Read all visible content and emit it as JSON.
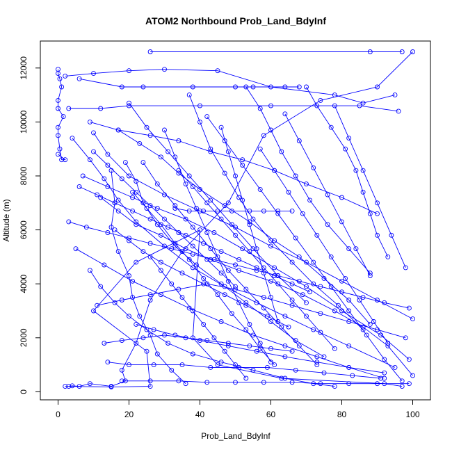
{
  "chart_data": {
    "type": "line",
    "title": "ATOM2 Northbound Prob_Land_BdyInf",
    "xlabel": "Prob_Land_BdyInf",
    "ylabel": "Altitude (m)",
    "xlim": [
      -5,
      105
    ],
    "ylim": [
      -300,
      13000
    ],
    "xticks": [
      "0",
      "20",
      "40",
      "60",
      "80",
      "100"
    ],
    "yticks": [
      "0",
      "2000",
      "4000",
      "6000",
      "8000",
      "10000",
      "12000"
    ],
    "xtick_values": [
      0,
      20,
      40,
      60,
      80,
      100
    ],
    "ytick_values": [
      0,
      2000,
      4000,
      6000,
      8000,
      10000,
      12000
    ],
    "grid": false,
    "legend": "none",
    "color": "#0000ff",
    "series": [
      {
        "x": [
          0,
          0,
          0.5,
          1,
          0,
          0,
          1.5,
          0,
          0,
          0.5,
          1,
          2,
          0
        ],
        "y": [
          11950,
          11800,
          11600,
          11300,
          10800,
          10500,
          10200,
          9800,
          9500,
          9000,
          8600,
          8600,
          8800
        ]
      },
      {
        "x": [
          2,
          15,
          26,
          25,
          10,
          22,
          40,
          38,
          45,
          63,
          92,
          97
        ],
        "y": [
          200,
          180,
          200,
          1500,
          3000,
          4800,
          6000,
          2000,
          1000,
          500,
          300,
          200
        ]
      },
      {
        "x": [
          3,
          4,
          6,
          9,
          15,
          19,
          18,
          22,
          26,
          35,
          48,
          58,
          74,
          90,
          100
        ],
        "y": [
          200,
          220,
          200,
          300,
          200,
          400,
          800,
          1800,
          3400,
          5200,
          7000,
          9500,
          10800,
          11300,
          12600
        ]
      },
      {
        "x": [
          26,
          88,
          97
        ],
        "y": [
          12600,
          12600,
          12600
        ]
      },
      {
        "x": [
          2,
          10,
          20,
          30,
          45,
          60,
          78,
          86,
          95
        ],
        "y": [
          11700,
          11800,
          11900,
          11950,
          11900,
          11300,
          11000,
          10700,
          11000
        ]
      },
      {
        "x": [
          6,
          18,
          24,
          38,
          50,
          55,
          64,
          68
        ],
        "y": [
          11600,
          11300,
          11300,
          11300,
          11300,
          11300,
          11300,
          11300
        ]
      },
      {
        "x": [
          3,
          12,
          20,
          40,
          60,
          85,
          96
        ],
        "y": [
          10500,
          10500,
          10600,
          10600,
          10600,
          10600,
          10400
        ]
      },
      {
        "x": [
          9,
          17,
          26,
          34,
          43,
          52,
          61,
          70,
          80,
          90
        ],
        "y": [
          10000,
          9700,
          9500,
          9300,
          8900,
          8600,
          8200,
          7700,
          7200,
          6600
        ]
      },
      {
        "x": [
          10,
          14,
          20,
          30,
          40,
          50,
          60,
          70,
          80,
          90,
          100
        ],
        "y": [
          9600,
          8800,
          8000,
          7300,
          6700,
          6100,
          5400,
          4800,
          4100,
          3400,
          2700
        ]
      },
      {
        "x": [
          4,
          9,
          13,
          17,
          22,
          30,
          38,
          47,
          56,
          64,
          72,
          82,
          95
        ],
        "y": [
          9400,
          8600,
          7900,
          7100,
          6300,
          5400,
          4600,
          3900,
          3300,
          2800,
          2300,
          1700,
          900
        ]
      },
      {
        "x": [
          15,
          16,
          15,
          17,
          20,
          21,
          23,
          26,
          28,
          32,
          36
        ],
        "y": [
          8200,
          7000,
          6100,
          5200,
          4300,
          3500,
          2800,
          2100,
          1400,
          800,
          300
        ]
      },
      {
        "x": [
          7,
          14,
          21,
          28,
          36,
          44,
          52,
          61,
          70,
          80,
          91,
          99
        ],
        "y": [
          8000,
          7600,
          7200,
          6800,
          6400,
          5900,
          5300,
          4600,
          3900,
          3000,
          2100,
          1200
        ]
      },
      {
        "x": [
          12,
          17,
          22,
          29,
          36,
          43,
          51,
          60,
          69,
          78,
          86,
          93,
          100
        ],
        "y": [
          7200,
          6700,
          6200,
          5800,
          5300,
          4900,
          4500,
          4100,
          3600,
          3000,
          2400,
          1700,
          600
        ]
      },
      {
        "x": [
          5,
          13,
          21,
          29,
          37,
          46,
          55,
          64,
          73,
          82,
          92
        ],
        "y": [
          5300,
          4700,
          4100,
          3600,
          3100,
          2600,
          2100,
          1700,
          1300,
          900,
          500
        ]
      },
      {
        "x": [
          9,
          12,
          16,
          20,
          25,
          31,
          38,
          46,
          55,
          64,
          72,
          78
        ],
        "y": [
          4500,
          3900,
          3300,
          2800,
          2300,
          1800,
          1400,
          1100,
          800,
          500,
          300,
          200
        ]
      },
      {
        "x": [
          17,
          23,
          29,
          34,
          40,
          47,
          54,
          61,
          68,
          75,
          82,
          88
        ],
        "y": [
          9700,
          9200,
          8700,
          8100,
          7500,
          6900,
          6300,
          5600,
          5000,
          4200,
          3400,
          2500
        ]
      },
      {
        "x": [
          19,
          22,
          24,
          28,
          33,
          39,
          46,
          53,
          60,
          67,
          75
        ],
        "y": [
          8500,
          7800,
          7000,
          6200,
          5400,
          4700,
          4000,
          3300,
          2600,
          1900,
          1300
        ]
      },
      {
        "x": [
          20,
          25,
          31,
          37,
          43,
          49,
          55,
          62,
          70
        ],
        "y": [
          10700,
          9800,
          8900,
          8000,
          7100,
          6200,
          5300,
          4300,
          3300
        ]
      },
      {
        "x": [
          37,
          40,
          43,
          47,
          51,
          55,
          60,
          66,
          72,
          79,
          86
        ],
        "y": [
          11000,
          10000,
          9000,
          8100,
          7200,
          6400,
          5600,
          4800,
          4000,
          3200,
          2300
        ]
      },
      {
        "x": [
          53,
          57,
          60,
          63,
          67,
          71,
          76,
          82,
          88
        ],
        "y": [
          11300,
          10500,
          9700,
          8900,
          8000,
          7100,
          6200,
          5300,
          4400
        ]
      },
      {
        "x": [
          70,
          73,
          77,
          81,
          84,
          86,
          88,
          90,
          93
        ],
        "y": [
          11300,
          10600,
          9800,
          9000,
          8200,
          7400,
          6600,
          5800,
          5000
        ]
      },
      {
        "x": [
          33,
          37,
          41,
          45,
          49,
          54,
          58,
          62,
          66
        ],
        "y": [
          6800,
          6700,
          6700,
          6700,
          6700,
          6700,
          6700,
          6700,
          6700
        ]
      },
      {
        "x": [
          22,
          27,
          33,
          40,
          48,
          56,
          64,
          73,
          82,
          92
        ],
        "y": [
          2500,
          2300,
          2100,
          1900,
          1700,
          1500,
          1300,
          1100,
          900,
          700
        ]
      },
      {
        "x": [
          14,
          20,
          27,
          35,
          43,
          51,
          59,
          67,
          75,
          83,
          91
        ],
        "y": [
          1100,
          1000,
          1000,
          1000,
          900,
          900,
          900,
          800,
          700,
          600,
          500
        ]
      },
      {
        "x": [
          18,
          26,
          34,
          42,
          50,
          58,
          66,
          74,
          82,
          90,
          99
        ],
        "y": [
          400,
          400,
          400,
          350,
          350,
          350,
          350,
          300,
          300,
          300,
          300
        ]
      },
      {
        "x": [
          11,
          18,
          26,
          34,
          42,
          50,
          58,
          66,
          74,
          82,
          90,
          98
        ],
        "y": [
          3200,
          3400,
          3600,
          3800,
          4000,
          3800,
          3500,
          3200,
          2900,
          2600,
          2300,
          2000
        ]
      },
      {
        "x": [
          16,
          20,
          24,
          29,
          35,
          41,
          47,
          53,
          59,
          65
        ],
        "y": [
          6000,
          5600,
          5200,
          4800,
          4400,
          4000,
          3600,
          3200,
          2800,
          2400
        ]
      },
      {
        "x": [
          24,
          28,
          33,
          38,
          43,
          48,
          53,
          58,
          63,
          68,
          73
        ],
        "y": [
          8500,
          7700,
          6900,
          6100,
          5300,
          4500,
          3800,
          3100,
          2400,
          1700,
          1000
        ]
      },
      {
        "x": [
          46,
          48,
          50,
          52,
          54,
          56,
          58,
          60,
          62
        ],
        "y": [
          9800,
          8900,
          8000,
          7100,
          6200,
          5300,
          4400,
          3500,
          2600
        ]
      },
      {
        "x": [
          30,
          33,
          36,
          39,
          42,
          45,
          48,
          51,
          54,
          57,
          60
        ],
        "y": [
          9700,
          8700,
          7700,
          6800,
          5900,
          5000,
          4100,
          3300,
          2500,
          1800,
          1100
        ]
      },
      {
        "x": [
          26,
          29,
          32,
          35,
          38,
          41,
          44,
          47,
          50,
          53
        ],
        "y": [
          5000,
          4500,
          4000,
          3500,
          3000,
          2500,
          2000,
          1500,
          1000,
          500
        ]
      },
      {
        "x": [
          21,
          25,
          29,
          33,
          37,
          41,
          45,
          49,
          53,
          57,
          61
        ],
        "y": [
          7400,
          6800,
          6200,
          5500,
          4900,
          4200,
          3600,
          2900,
          2300,
          1600,
          1000
        ]
      },
      {
        "x": [
          34,
          38,
          42,
          46,
          50,
          54,
          58,
          62,
          66,
          70,
          74,
          78
        ],
        "y": [
          8200,
          7600,
          7000,
          6400,
          5800,
          5200,
          4600,
          4000,
          3400,
          2800,
          2200,
          1600
        ]
      },
      {
        "x": [
          42,
          47,
          52,
          57,
          62,
          67,
          72,
          77,
          82,
          87,
          92,
          97
        ],
        "y": [
          10200,
          9300,
          8400,
          7500,
          6600,
          5700,
          4800,
          3900,
          3000,
          2100,
          1200,
          400
        ]
      },
      {
        "x": [
          57,
          61,
          65,
          69,
          73,
          77,
          81,
          85,
          89,
          93
        ],
        "y": [
          9000,
          8200,
          7400,
          6600,
          5800,
          5000,
          4200,
          3400,
          2600,
          1800
        ]
      },
      {
        "x": [
          64,
          68,
          72,
          76,
          80,
          84,
          88
        ],
        "y": [
          10300,
          9300,
          8300,
          7300,
          6300,
          5300,
          4300
        ]
      },
      {
        "x": [
          78,
          82,
          86,
          90,
          94,
          98
        ],
        "y": [
          10600,
          9400,
          8200,
          7000,
          5800,
          4600
        ]
      },
      {
        "x": [
          13,
          18,
          24,
          30,
          36,
          42,
          48,
          54,
          60,
          66
        ],
        "y": [
          1800,
          1900,
          2000,
          2100,
          2000,
          1900,
          1800,
          1700,
          1600,
          1500
        ]
      },
      {
        "x": [
          3,
          8,
          14,
          20,
          26,
          32,
          38,
          44,
          50,
          56,
          62,
          68,
          74,
          80,
          86,
          92,
          99
        ],
        "y": [
          6300,
          6100,
          5900,
          5700,
          5500,
          5300,
          5100,
          4900,
          4700,
          4500,
          4300,
          4100,
          3900,
          3700,
          3500,
          3300,
          3100
        ]
      },
      {
        "x": [
          6,
          11,
          16,
          21,
          26,
          31,
          36,
          41,
          46,
          51,
          56,
          61,
          66,
          71
        ],
        "y": [
          7600,
          7300,
          7000,
          6700,
          6400,
          6100,
          5800,
          5500,
          5200,
          4900,
          4600,
          4300,
          4000,
          3700
        ]
      },
      {
        "x": [
          10,
          14,
          18,
          22,
          26,
          30,
          34,
          38,
          42,
          46,
          50
        ],
        "y": [
          8900,
          8400,
          7900,
          7400,
          6900,
          6400,
          5900,
          5400,
          4900,
          4400,
          3900
        ]
      }
    ]
  }
}
